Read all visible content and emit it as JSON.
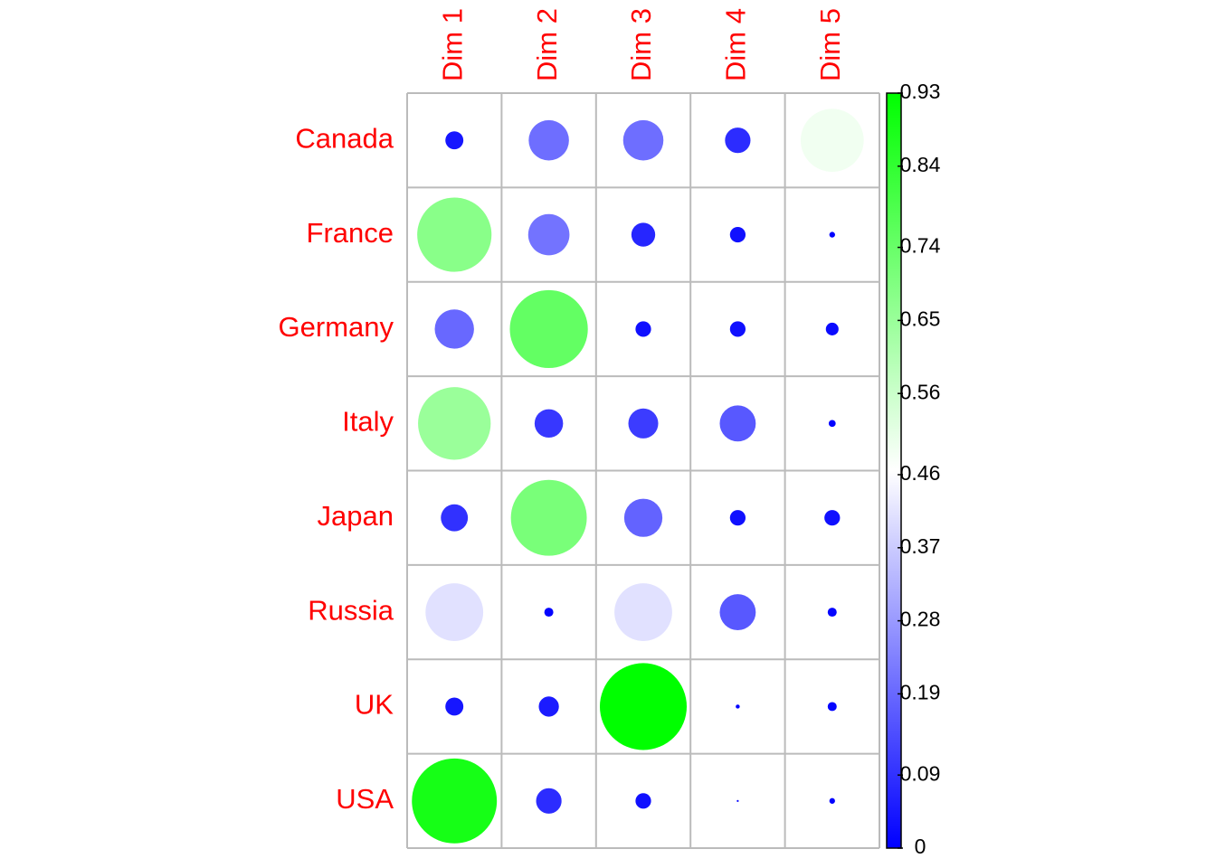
{
  "chart_data": {
    "type": "corrplot",
    "rows": [
      "Canada",
      "France",
      "Germany",
      "Italy",
      "Japan",
      "Russia",
      "UK",
      "USA"
    ],
    "columns": [
      "Dim 1",
      "Dim 2",
      "Dim 3",
      "Dim 4",
      "Dim 5"
    ],
    "values": [
      [
        0.04,
        0.2,
        0.2,
        0.08,
        0.49
      ],
      [
        0.68,
        0.21,
        0.07,
        0.03,
        0.004
      ],
      [
        0.19,
        0.75,
        0.03,
        0.03,
        0.02
      ],
      [
        0.65,
        0.1,
        0.11,
        0.16,
        0.006
      ],
      [
        0.09,
        0.71,
        0.18,
        0.03,
        0.03
      ],
      [
        0.41,
        0.01,
        0.41,
        0.16,
        0.01
      ],
      [
        0.04,
        0.05,
        0.93,
        0.002,
        0.01
      ],
      [
        0.89,
        0.08,
        0.03,
        0.0005,
        0.004
      ]
    ],
    "colors": [
      "#0000ff",
      "#ffffff",
      "#00ff00"
    ],
    "zlim": [
      0,
      0.93
    ],
    "zticks": [
      0,
      0.09,
      0.19,
      0.28,
      0.37,
      0.46,
      0.56,
      0.65,
      0.74,
      0.84,
      0.93
    ]
  }
}
